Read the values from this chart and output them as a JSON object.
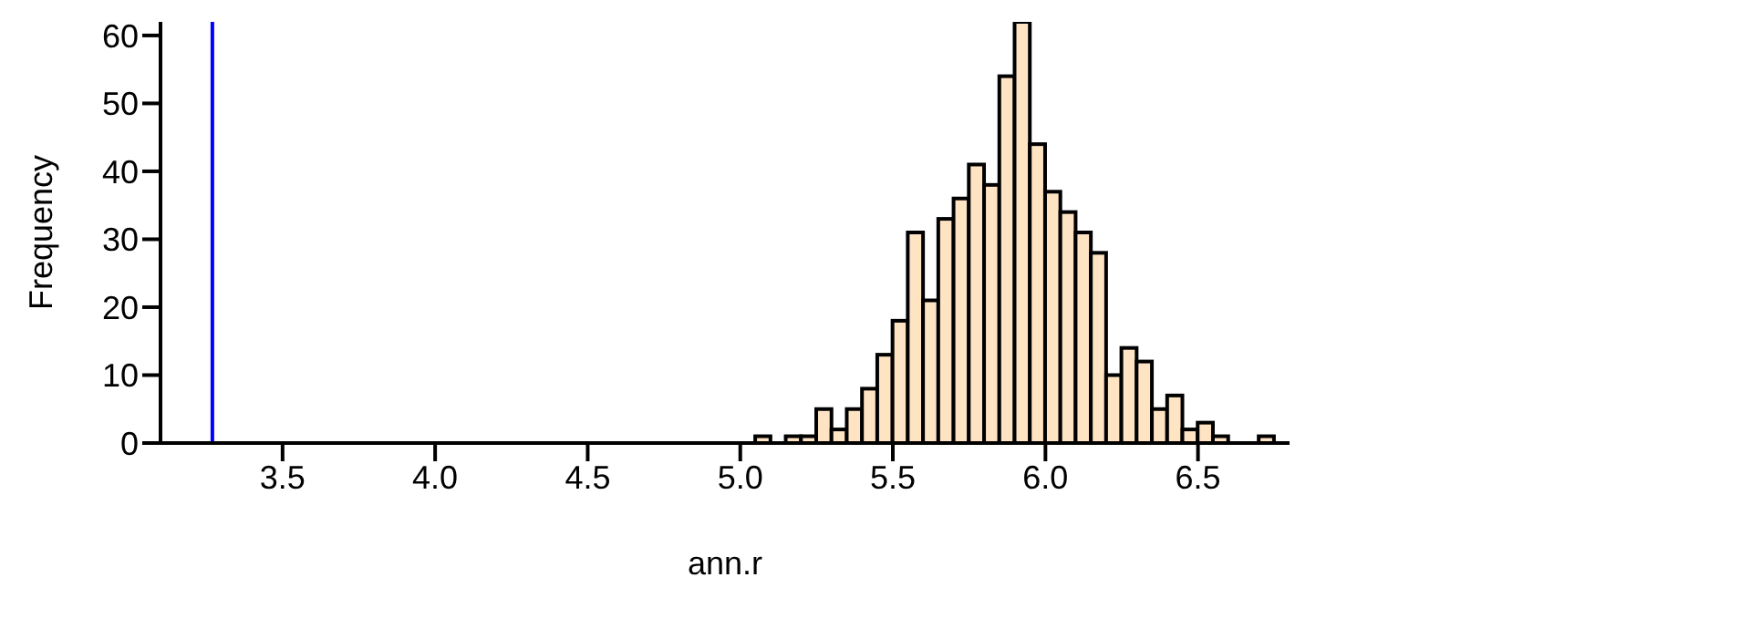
{
  "chart_data": {
    "type": "histogram",
    "xlabel": "ann.r",
    "ylabel": "Frequency",
    "color": "#ffe4c4",
    "bins": [
      5.05,
      5.1,
      5.15,
      5.2,
      5.25,
      5.3,
      5.35,
      5.4,
      5.45,
      5.5,
      5.55,
      5.6,
      5.65,
      5.7,
      5.75,
      5.8,
      5.85,
      5.9,
      5.95,
      6.0,
      6.05,
      6.1,
      6.15,
      6.2,
      6.25,
      6.3,
      6.35,
      6.4,
      6.45,
      6.5,
      6.55,
      6.6,
      6.65,
      6.7,
      6.75
    ],
    "values": [
      1,
      0,
      1,
      1,
      5,
      2,
      5,
      8,
      13,
      18,
      31,
      21,
      33,
      36,
      41,
      38,
      54,
      62,
      44,
      37,
      34,
      31,
      28,
      10,
      14,
      12,
      5,
      7,
      2,
      3,
      1,
      0,
      0,
      1
    ],
    "xlim": [
      3.1,
      6.8
    ],
    "xticks": [
      3.5,
      {
        "value": 4,
        "label": "4.0"
      },
      4.5,
      {
        "value": 5,
        "label": "5.0"
      },
      5.5,
      {
        "value": 6,
        "label": "6.0"
      },
      6.5
    ],
    "ylim": [
      0,
      62
    ],
    "yticks": [
      0,
      10,
      20,
      30,
      40,
      50,
      60
    ],
    "ref_lines": [
      {
        "axis": "x",
        "value": 3.27,
        "color": "#0000ff"
      }
    ]
  }
}
